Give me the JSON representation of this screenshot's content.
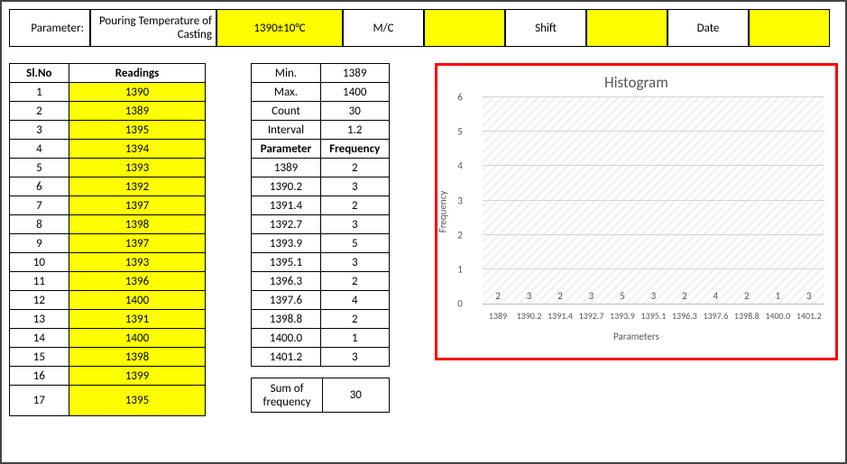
{
  "header": {
    "param_label": "Parameter:",
    "param_name": "Pouring Temperature of Casting",
    "param_value": "1390±10°C",
    "mc_label": "M/C",
    "mc_value": "",
    "shift_label": "Shift",
    "shift_value": "",
    "date_label": "Date",
    "date_value": ""
  },
  "readings": {
    "col_sl": "Sl.No",
    "col_read": "Readings",
    "rows": [
      {
        "sl": "1",
        "val": "1390"
      },
      {
        "sl": "2",
        "val": "1389"
      },
      {
        "sl": "3",
        "val": "1395"
      },
      {
        "sl": "4",
        "val": "1394"
      },
      {
        "sl": "5",
        "val": "1393"
      },
      {
        "sl": "6",
        "val": "1392"
      },
      {
        "sl": "7",
        "val": "1397"
      },
      {
        "sl": "8",
        "val": "1398"
      },
      {
        "sl": "9",
        "val": "1397"
      },
      {
        "sl": "10",
        "val": "1393"
      },
      {
        "sl": "11",
        "val": "1396"
      },
      {
        "sl": "12",
        "val": "1400"
      },
      {
        "sl": "13",
        "val": "1391"
      },
      {
        "sl": "14",
        "val": "1400"
      },
      {
        "sl": "15",
        "val": "1398"
      },
      {
        "sl": "16",
        "val": "1399"
      },
      {
        "sl": "17",
        "val": "1395"
      }
    ]
  },
  "stats": {
    "rows": [
      {
        "label": "Min.",
        "value": "1389",
        "bold": false
      },
      {
        "label": "Max.",
        "value": "1400",
        "bold": false
      },
      {
        "label": "Count",
        "value": "30",
        "bold": false
      },
      {
        "label": "Interval",
        "value": "1.2",
        "bold": false
      },
      {
        "label": "Parameter",
        "value": "Frequency",
        "bold": true
      },
      {
        "label": "1389",
        "value": "2",
        "bold": false
      },
      {
        "label": "1390.2",
        "value": "3",
        "bold": false
      },
      {
        "label": "1391.4",
        "value": "2",
        "bold": false
      },
      {
        "label": "1392.7",
        "value": "3",
        "bold": false
      },
      {
        "label": "1393.9",
        "value": "5",
        "bold": false
      },
      {
        "label": "1395.1",
        "value": "3",
        "bold": false
      },
      {
        "label": "1396.3",
        "value": "2",
        "bold": false
      },
      {
        "label": "1397.6",
        "value": "4",
        "bold": false
      },
      {
        "label": "1398.8",
        "value": "2",
        "bold": false
      },
      {
        "label": "1400.0",
        "value": "1",
        "bold": false
      },
      {
        "label": "1401.2",
        "value": "3",
        "bold": false
      }
    ],
    "sum_label": "Sum of frequency",
    "sum_value": "30"
  },
  "chart": {
    "title": "Histogram",
    "y_label": "Frequency",
    "x_label": "Parameters",
    "y_max": 6,
    "y_ticks": [
      0,
      1,
      2,
      3,
      4,
      5,
      6
    ],
    "bar_color": "#5b9bd5",
    "border_color": "#ff0000",
    "plot_bg_pattern": "diagonal-hatch",
    "grid_color": "#d5d5d5",
    "text_color": "#555555",
    "label_fontsize": 11,
    "title_fontsize": 17,
    "series": [
      {
        "x": "1389",
        "y": 2
      },
      {
        "x": "1390.2",
        "y": 3
      },
      {
        "x": "1391.4",
        "y": 2
      },
      {
        "x": "1392.7",
        "y": 3
      },
      {
        "x": "1393.9",
        "y": 5
      },
      {
        "x": "1395.1",
        "y": 3
      },
      {
        "x": "1396.3",
        "y": 2
      },
      {
        "x": "1397.6",
        "y": 4
      },
      {
        "x": "1398.8",
        "y": 2
      },
      {
        "x": "1400.0",
        "y": 1
      },
      {
        "x": "1401.2",
        "y": 3
      }
    ]
  }
}
